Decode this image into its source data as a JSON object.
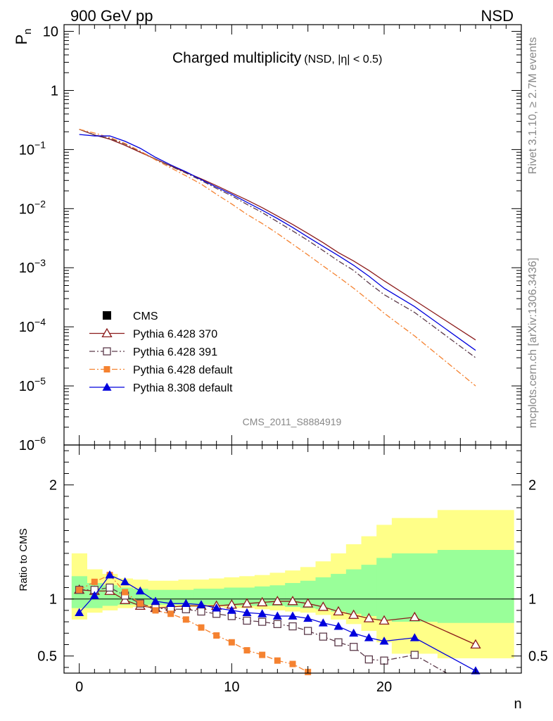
{
  "header": {
    "left": "900 GeV pp",
    "right": "NSD"
  },
  "side_text": {
    "rivet": "Rivet 3.1.10, ≥ 2.7M events",
    "mcplots": "mcplots.cern.ch [arXiv:1306.3436]"
  },
  "chart_data": [
    {
      "type": "scatter",
      "title": "Charged multiplicity",
      "subtitle": "(NSD, |η| < 0.5)",
      "analysis": "CMS_2011_S8884919",
      "ylabel": "P_n",
      "ylabel_main": "P",
      "ylabel_sub": "n",
      "yscale": "log",
      "xlim": [
        -1,
        29
      ],
      "ylim": [
        1e-06,
        13
      ],
      "yticks": [
        {
          "value": 10,
          "base": "10",
          "exp": ""
        },
        {
          "value": 1,
          "base": "1",
          "exp": ""
        },
        {
          "value": 0.1,
          "base": "10",
          "exp": "−1"
        },
        {
          "value": 0.01,
          "base": "10",
          "exp": "−2"
        },
        {
          "value": 0.001,
          "base": "10",
          "exp": "−3"
        },
        {
          "value": 0.0001,
          "base": "10",
          "exp": "−4"
        },
        {
          "value": 1e-05,
          "base": "10",
          "exp": "−5"
        },
        {
          "value": 1e-06,
          "base": "10",
          "exp": "−6"
        }
      ],
      "legend_position": "bottom-left",
      "series": [
        {
          "name": "CMS",
          "marker": "square-filled",
          "line": "none",
          "color": "#000000",
          "x": [
            0,
            1,
            2,
            3,
            4,
            5,
            6,
            7,
            8,
            9,
            10,
            11,
            12,
            13,
            14,
            15,
            16,
            17,
            18,
            19,
            20,
            22,
            26
          ],
          "y": [
            0.205,
            0.165,
            0.14,
            0.12,
            0.098,
            0.075,
            0.057,
            0.044,
            0.034,
            0.026,
            0.0195,
            0.0145,
            0.0108,
            0.0077,
            0.0056,
            0.004,
            0.0029,
            0.0021,
            0.0015,
            0.0011,
            0.00075,
            0.00034,
            0.0001
          ]
        },
        {
          "name": "Pythia 6.428 370",
          "marker": "triangle-open",
          "line": "solid",
          "color": "#8b1a1a",
          "x": [
            0,
            1,
            2,
            3,
            4,
            5,
            6,
            7,
            8,
            9,
            10,
            11,
            12,
            13,
            14,
            15,
            16,
            17,
            18,
            19,
            20,
            22,
            26
          ],
          "y": [
            0.22,
            0.176,
            0.15,
            0.118,
            0.09,
            0.069,
            0.053,
            0.041,
            0.032,
            0.0245,
            0.0185,
            0.014,
            0.0104,
            0.0075,
            0.0054,
            0.0038,
            0.00265,
            0.0018,
            0.0013,
            0.0009,
            0.0006,
            0.00028,
            6e-05
          ]
        },
        {
          "name": "Pythia 6.428 391",
          "marker": "square-open",
          "line": "dashdot",
          "color": "#5c3a4a",
          "x": [
            0,
            1,
            2,
            3,
            4,
            5,
            6,
            7,
            8,
            9,
            10,
            11,
            12,
            13,
            14,
            15,
            16,
            17,
            18,
            19,
            20,
            22,
            26
          ],
          "y": [
            0.22,
            0.177,
            0.154,
            0.124,
            0.093,
            0.069,
            0.052,
            0.04,
            0.03,
            0.022,
            0.0165,
            0.0118,
            0.0086,
            0.006,
            0.0042,
            0.0029,
            0.00195,
            0.0013,
            0.0009,
            0.00055,
            0.00035,
            0.000175,
            3e-05
          ]
        },
        {
          "name": "Pythia 6.428 default",
          "marker": "square-filled-small",
          "line": "dashdot",
          "color": "#f58230",
          "x": [
            0,
            1,
            2,
            3,
            4,
            5,
            6,
            7,
            8,
            9,
            10,
            11,
            12,
            13,
            14,
            15,
            16,
            17,
            18,
            19,
            20,
            22,
            26
          ],
          "y": [
            0.22,
            0.19,
            0.16,
            0.127,
            0.094,
            0.067,
            0.049,
            0.036,
            0.026,
            0.0175,
            0.012,
            0.008,
            0.0056,
            0.0038,
            0.0025,
            0.00165,
            0.00107,
            0.0007,
            0.00045,
            0.00028,
            0.00017,
            7e-05,
            1e-05
          ]
        },
        {
          "name": "Pythia 8.308 default",
          "marker": "triangle-filled",
          "line": "solid",
          "color": "#0000dd",
          "x": [
            0,
            1,
            2,
            3,
            4,
            5,
            6,
            7,
            8,
            9,
            10,
            11,
            12,
            13,
            14,
            15,
            16,
            17,
            18,
            19,
            20,
            22,
            26
          ],
          "y": [
            0.18,
            0.17,
            0.17,
            0.138,
            0.105,
            0.074,
            0.055,
            0.042,
            0.031,
            0.0232,
            0.0175,
            0.0128,
            0.0094,
            0.0068,
            0.0048,
            0.0033,
            0.0023,
            0.0016,
            0.0011,
            0.00072,
            0.00045,
            0.00022,
            4e-05
          ]
        }
      ]
    },
    {
      "type": "scatter",
      "ylabel": "Ratio to CMS",
      "xlabel": "n",
      "xlim": [
        -1,
        29
      ],
      "ylim": [
        0.35,
        2.35
      ],
      "xticks": [
        0,
        10,
        20
      ],
      "yticks": [
        0.5,
        1,
        2
      ],
      "reference_line": 1,
      "bands": {
        "x_edges": [
          -0.5,
          0.5,
          1.5,
          2.5,
          3.5,
          4.5,
          5.5,
          6.5,
          7.5,
          8.5,
          9.5,
          10.5,
          11.5,
          12.5,
          13.5,
          14.5,
          15.5,
          16.5,
          17.5,
          18.5,
          19.5,
          20.5,
          23.5,
          28.5
        ],
        "yellow_lo": [
          0.82,
          0.88,
          0.9,
          0.92,
          0.93,
          0.93,
          0.93,
          0.93,
          0.93,
          0.93,
          0.92,
          0.92,
          0.91,
          0.9,
          0.89,
          0.88,
          0.86,
          0.82,
          0.78,
          0.72,
          0.62,
          0.52,
          0.48
        ],
        "yellow_hi": [
          1.4,
          1.26,
          1.22,
          1.18,
          1.17,
          1.16,
          1.16,
          1.17,
          1.17,
          1.18,
          1.19,
          1.2,
          1.21,
          1.23,
          1.25,
          1.28,
          1.33,
          1.4,
          1.48,
          1.55,
          1.65,
          1.71,
          1.78
        ],
        "green_lo": [
          0.92,
          0.92,
          0.94,
          0.95,
          0.95,
          0.95,
          0.95,
          0.95,
          0.95,
          0.95,
          0.94,
          0.94,
          0.94,
          0.94,
          0.93,
          0.92,
          0.91,
          0.89,
          0.87,
          0.85,
          0.82,
          0.8,
          0.79
        ],
        "green_hi": [
          1.2,
          1.14,
          1.12,
          1.1,
          1.09,
          1.08,
          1.08,
          1.08,
          1.09,
          1.09,
          1.1,
          1.1,
          1.11,
          1.12,
          1.14,
          1.16,
          1.19,
          1.22,
          1.26,
          1.3,
          1.36,
          1.4,
          1.43
        ]
      },
      "series": [
        {
          "name": "Pythia 6.428 370",
          "marker": "triangle-open",
          "line": "solid",
          "color": "#8b1a1a",
          "x": [
            0,
            1,
            2,
            3,
            4,
            5,
            6,
            7,
            8,
            9,
            10,
            11,
            12,
            13,
            14,
            15,
            16,
            17,
            18,
            19,
            20,
            22,
            26
          ],
          "y": [
            1.08,
            1.07,
            1.07,
            0.99,
            0.94,
            0.92,
            0.93,
            0.94,
            0.94,
            0.94,
            0.95,
            0.96,
            0.97,
            0.98,
            0.98,
            0.96,
            0.93,
            0.89,
            0.86,
            0.83,
            0.81,
            0.84,
            0.6
          ]
        },
        {
          "name": "Pythia 6.428 391",
          "marker": "square-open",
          "line": "dashdot",
          "color": "#5c3a4a",
          "x": [
            0,
            1,
            2,
            3,
            4,
            5,
            6,
            7,
            8,
            9,
            10,
            11,
            12,
            13,
            14,
            15,
            16,
            17,
            18,
            19,
            20,
            22,
            24.1
          ],
          "y": [
            1.08,
            1.08,
            1.1,
            1.03,
            0.96,
            0.92,
            0.91,
            0.91,
            0.89,
            0.87,
            0.85,
            0.81,
            0.8,
            0.78,
            0.76,
            0.72,
            0.67,
            0.62,
            0.58,
            0.47,
            0.46,
            0.51,
            0.35
          ]
        },
        {
          "name": "Pythia 6.428 default",
          "marker": "square-filled-small",
          "line": "dashdot",
          "color": "#f58230",
          "x": [
            0,
            1,
            2,
            3,
            4,
            5,
            6,
            7,
            8,
            9,
            10,
            11,
            12,
            13,
            14,
            15
          ],
          "y": [
            1.08,
            1.15,
            1.21,
            1.06,
            0.96,
            0.9,
            0.87,
            0.82,
            0.75,
            0.68,
            0.62,
            0.55,
            0.51,
            0.46,
            0.43,
            0.36
          ]
        },
        {
          "name": "Pythia 8.308 default",
          "marker": "triangle-filled",
          "line": "solid",
          "color": "#0000dd",
          "x": [
            0,
            1,
            2,
            3,
            4,
            5,
            6,
            7,
            8,
            9,
            10,
            11,
            12,
            13,
            14,
            15,
            16,
            17,
            18,
            19,
            20,
            22,
            26
          ],
          "y": [
            0.88,
            1.03,
            1.21,
            1.15,
            1.07,
            0.98,
            0.96,
            0.96,
            0.95,
            0.92,
            0.9,
            0.88,
            0.87,
            0.85,
            0.85,
            0.83,
            0.79,
            0.76,
            0.7,
            0.66,
            0.63,
            0.66,
            0.37
          ]
        }
      ]
    }
  ]
}
